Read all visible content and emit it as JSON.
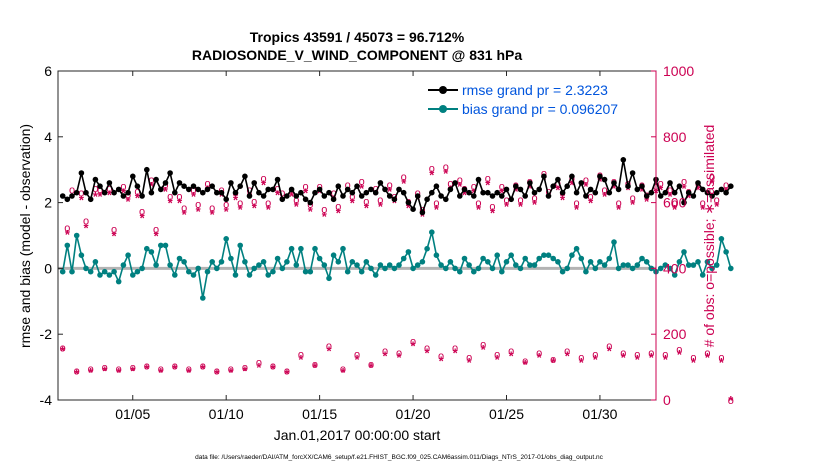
{
  "chart_data": {
    "type": "line",
    "title_line1": "Tropics 43591 / 45073 = 96.712%",
    "title_line2": "RADIOSONDE_V_WIND_COMPONENT @ 831 hPa",
    "ylabel_left": "rmse and bias (model - observation)",
    "ylabel_right": "# of obs: o=possible; ∗=assimilated",
    "xlabel": "Jan.01,2017 00:00:00 start",
    "footer": "data file: /Users/raeder/DAI/ATM_forcXX/CAM6_setup/f.e21.FHIST_BGC.f09_025.CAM6assim.011/Diags_NTrS_2017-01/obs_diag_output.nc",
    "xlim": [
      1,
      33
    ],
    "ylim_left": [
      -4,
      6
    ],
    "ylim_right": [
      0,
      1000
    ],
    "left_ticks": [
      6,
      4,
      2,
      0,
      -2,
      -4
    ],
    "left_tick_labels": [
      "6",
      "4",
      "2",
      "0",
      "-2",
      "-4"
    ],
    "right_ticks": [
      1000,
      800,
      600,
      400,
      200,
      0
    ],
    "right_tick_labels": [
      "1000",
      "800",
      "600",
      "400",
      "200",
      "0"
    ],
    "x_ticks": [
      5,
      10,
      15,
      20,
      25,
      30
    ],
    "x_tick_labels": [
      "01/05",
      "01/10",
      "01/15",
      "01/20",
      "01/25",
      "01/30"
    ],
    "legend": [
      {
        "label": "rmse grand pr = 2.3223",
        "color": "#000000"
      },
      {
        "label": "bias grand pr = 0.096207",
        "color": "#008080"
      }
    ],
    "colors": {
      "rmse": "#000000",
      "bias": "#008080",
      "obs": "#cc0052",
      "zero_line": "#b3b3b3",
      "legend_text": "#0055dd"
    },
    "series": [
      {
        "name": "rmse",
        "values": [
          2.2,
          2.1,
          2.2,
          2.3,
          2.9,
          2.3,
          2.1,
          2.7,
          2.5,
          2.3,
          2.6,
          2.3,
          2.4,
          2.2,
          2.3,
          2.8,
          2.5,
          2.2,
          3.0,
          2.3,
          2.7,
          2.4,
          2.6,
          2.9,
          2.3,
          2.6,
          2.5,
          2.4,
          2.5,
          2.4,
          2.3,
          2.4,
          2.5,
          2.3,
          2.3,
          2.1,
          2.6,
          2.3,
          2.5,
          2.8,
          2.2,
          2.6,
          2.3,
          2.2,
          2.4,
          2.4,
          2.7,
          2.1,
          2.2,
          2.4,
          2.2,
          2.3,
          2.1,
          2.0,
          2.3,
          2.4,
          2.2,
          2.3,
          2.1,
          2.5,
          2.2,
          2.4,
          2.3,
          2.5,
          2.2,
          2.3,
          2.4,
          2.3,
          2.6,
          2.4,
          2.2,
          2.1,
          2.4,
          2.3,
          2.0,
          1.8,
          2.2,
          1.7,
          2.1,
          2.3,
          2.5,
          2.2,
          2.1,
          2.4,
          2.6,
          2.2,
          2.4,
          2.3,
          2.2,
          2.7,
          2.3,
          2.3,
          2.2,
          2.3,
          2.2,
          2.4,
          2.1,
          2.5,
          2.4,
          2.2,
          2.6,
          2.3,
          2.4,
          2.8,
          2.2,
          2.5,
          2.7,
          2.3,
          2.5,
          2.8,
          2.3,
          2.6,
          2.2,
          2.4,
          2.3,
          2.8,
          2.7,
          2.3,
          2.6,
          2.4,
          3.3,
          2.5,
          2.9,
          2.4,
          2.5,
          2.2,
          2.3,
          2.7,
          2.2,
          2.3,
          2.6,
          2.3,
          2.5,
          2.0,
          2.3,
          2.2,
          2.6,
          2.4,
          2.3,
          2.2,
          2.3,
          2.4,
          2.3,
          2.5
        ],
        "start_day": 1.25,
        "step_days": 0.25
      },
      {
        "name": "bias",
        "values": [
          -0.1,
          0.7,
          -0.1,
          1.0,
          0.4,
          0.0,
          -0.1,
          0.2,
          -0.2,
          -0.1,
          -0.2,
          -0.1,
          -0.4,
          0.1,
          0.4,
          -0.2,
          -0.1,
          0.0,
          0.6,
          0.5,
          0.1,
          0.7,
          0.7,
          0.1,
          -0.2,
          0.3,
          0.2,
          -0.1,
          -0.2,
          0.0,
          -0.9,
          -0.1,
          0.2,
          0.0,
          0.2,
          0.9,
          0.3,
          -0.2,
          0.7,
          0.2,
          -0.2,
          0.0,
          0.1,
          0.2,
          -0.2,
          -0.1,
          0.3,
          0.0,
          0.2,
          0.6,
          0.1,
          0.6,
          -0.1,
          -0.1,
          0.6,
          0.3,
          0.1,
          -0.3,
          0.4,
          0.2,
          0.6,
          -0.1,
          0.2,
          0.1,
          -0.1,
          0.2,
          0.0,
          -0.2,
          0.1,
          0.0,
          0.1,
          0.0,
          0.1,
          0.3,
          0.5,
          0.0,
          0.1,
          0.2,
          0.6,
          1.1,
          0.4,
          0.1,
          0.0,
          0.2,
          0.0,
          -0.1,
          0.3,
          0.1,
          -0.1,
          0.0,
          0.3,
          0.2,
          0.0,
          0.4,
          -0.1,
          0.2,
          0.4,
          0.1,
          0.0,
          0.3,
          0.1,
          0.1,
          0.3,
          0.4,
          0.4,
          0.3,
          0.2,
          -0.1,
          0.0,
          0.4,
          0.6,
          0.3,
          -0.1,
          0.2,
          0.0,
          0.2,
          0.1,
          0.3,
          0.8,
          0.0,
          0.1,
          0.1,
          0.0,
          0.1,
          0.3,
          0.2,
          0.0,
          -0.1,
          0.0,
          0.1,
          0.0,
          -0.2,
          0.2,
          0.5,
          0.1,
          0.1,
          0.2,
          -0.2,
          0.2,
          0.0,
          0.1,
          0.9,
          0.5,
          0.0
        ],
        "start_day": 1.25,
        "step_days": 0.25
      },
      {
        "name": "obs_possible",
        "comment": "counts per 6-hour bin (right axis)",
        "values": [
          160,
          525,
          640,
          90,
          630,
          545,
          95,
          645,
          640,
          100,
          645,
          520,
          95,
          650,
          625,
          100,
          635,
          575,
          105,
          670,
          520,
          95,
          655,
          620,
          105,
          620,
          585,
          95,
          640,
          595,
          105,
          660,
          585,
          90,
          640,
          595,
          95,
          630,
          600,
          100,
          640,
          605,
          115,
          675,
          600,
          105,
          645,
          630,
          90,
          640,
          610,
          140,
          650,
          595,
          110,
          650,
          580,
          165,
          630,
          590,
          95,
          655,
          620,
          140,
          665,
          605,
          110,
          645,
          610,
          150,
          655,
          620,
          145,
          680,
          605,
          180,
          630,
          580,
          160,
          705,
          600,
          135,
          710,
          660,
          160,
          670,
          645,
          130,
          650,
          600,
          170,
          675,
          590,
          140,
          650,
          610,
          150,
          655,
          610,
          120,
          665,
          615,
          145,
          690,
          635,
          125,
          660,
          630,
          150,
          675,
          600,
          130,
          670,
          620,
          140,
          685,
          640,
          165,
          665,
          600,
          145,
          660,
          615,
          140,
          655,
          625,
          145,
          650,
          660,
          140,
          640,
          600,
          155,
          665,
          635,
          130,
          660,
          600,
          145,
          680,
          610,
          130,
          655,
          0
        ],
        "start_day": 1.25,
        "step_days": 0.25
      },
      {
        "name": "obs_assimilated",
        "comment": "counts per 6-hour bin (right axis)",
        "values": [
          150,
          505,
          615,
          80,
          610,
          525,
          85,
          620,
          620,
          90,
          625,
          500,
          85,
          630,
          605,
          90,
          615,
          555,
          95,
          650,
          500,
          85,
          635,
          600,
          95,
          600,
          565,
          85,
          620,
          575,
          95,
          640,
          565,
          80,
          620,
          575,
          85,
          610,
          580,
          90,
          620,
          585,
          100,
          655,
          580,
          95,
          625,
          610,
          80,
          620,
          590,
          125,
          630,
          575,
          100,
          630,
          560,
          150,
          610,
          570,
          85,
          635,
          600,
          125,
          645,
          585,
          100,
          625,
          590,
          135,
          635,
          600,
          130,
          660,
          585,
          165,
          610,
          560,
          145,
          685,
          580,
          120,
          690,
          640,
          145,
          650,
          625,
          115,
          630,
          580,
          155,
          655,
          570,
          125,
          630,
          590,
          135,
          635,
          590,
          110,
          645,
          595,
          130,
          670,
          615,
          115,
          640,
          610,
          135,
          655,
          580,
          115,
          650,
          600,
          125,
          665,
          620,
          150,
          645,
          580,
          130,
          640,
          595,
          125,
          635,
          605,
          130,
          630,
          640,
          125,
          620,
          580,
          140,
          645,
          615,
          115,
          640,
          580,
          130,
          660,
          590,
          115,
          635,
          0
        ],
        "start_day": 1.25,
        "step_days": 0.25
      }
    ]
  }
}
